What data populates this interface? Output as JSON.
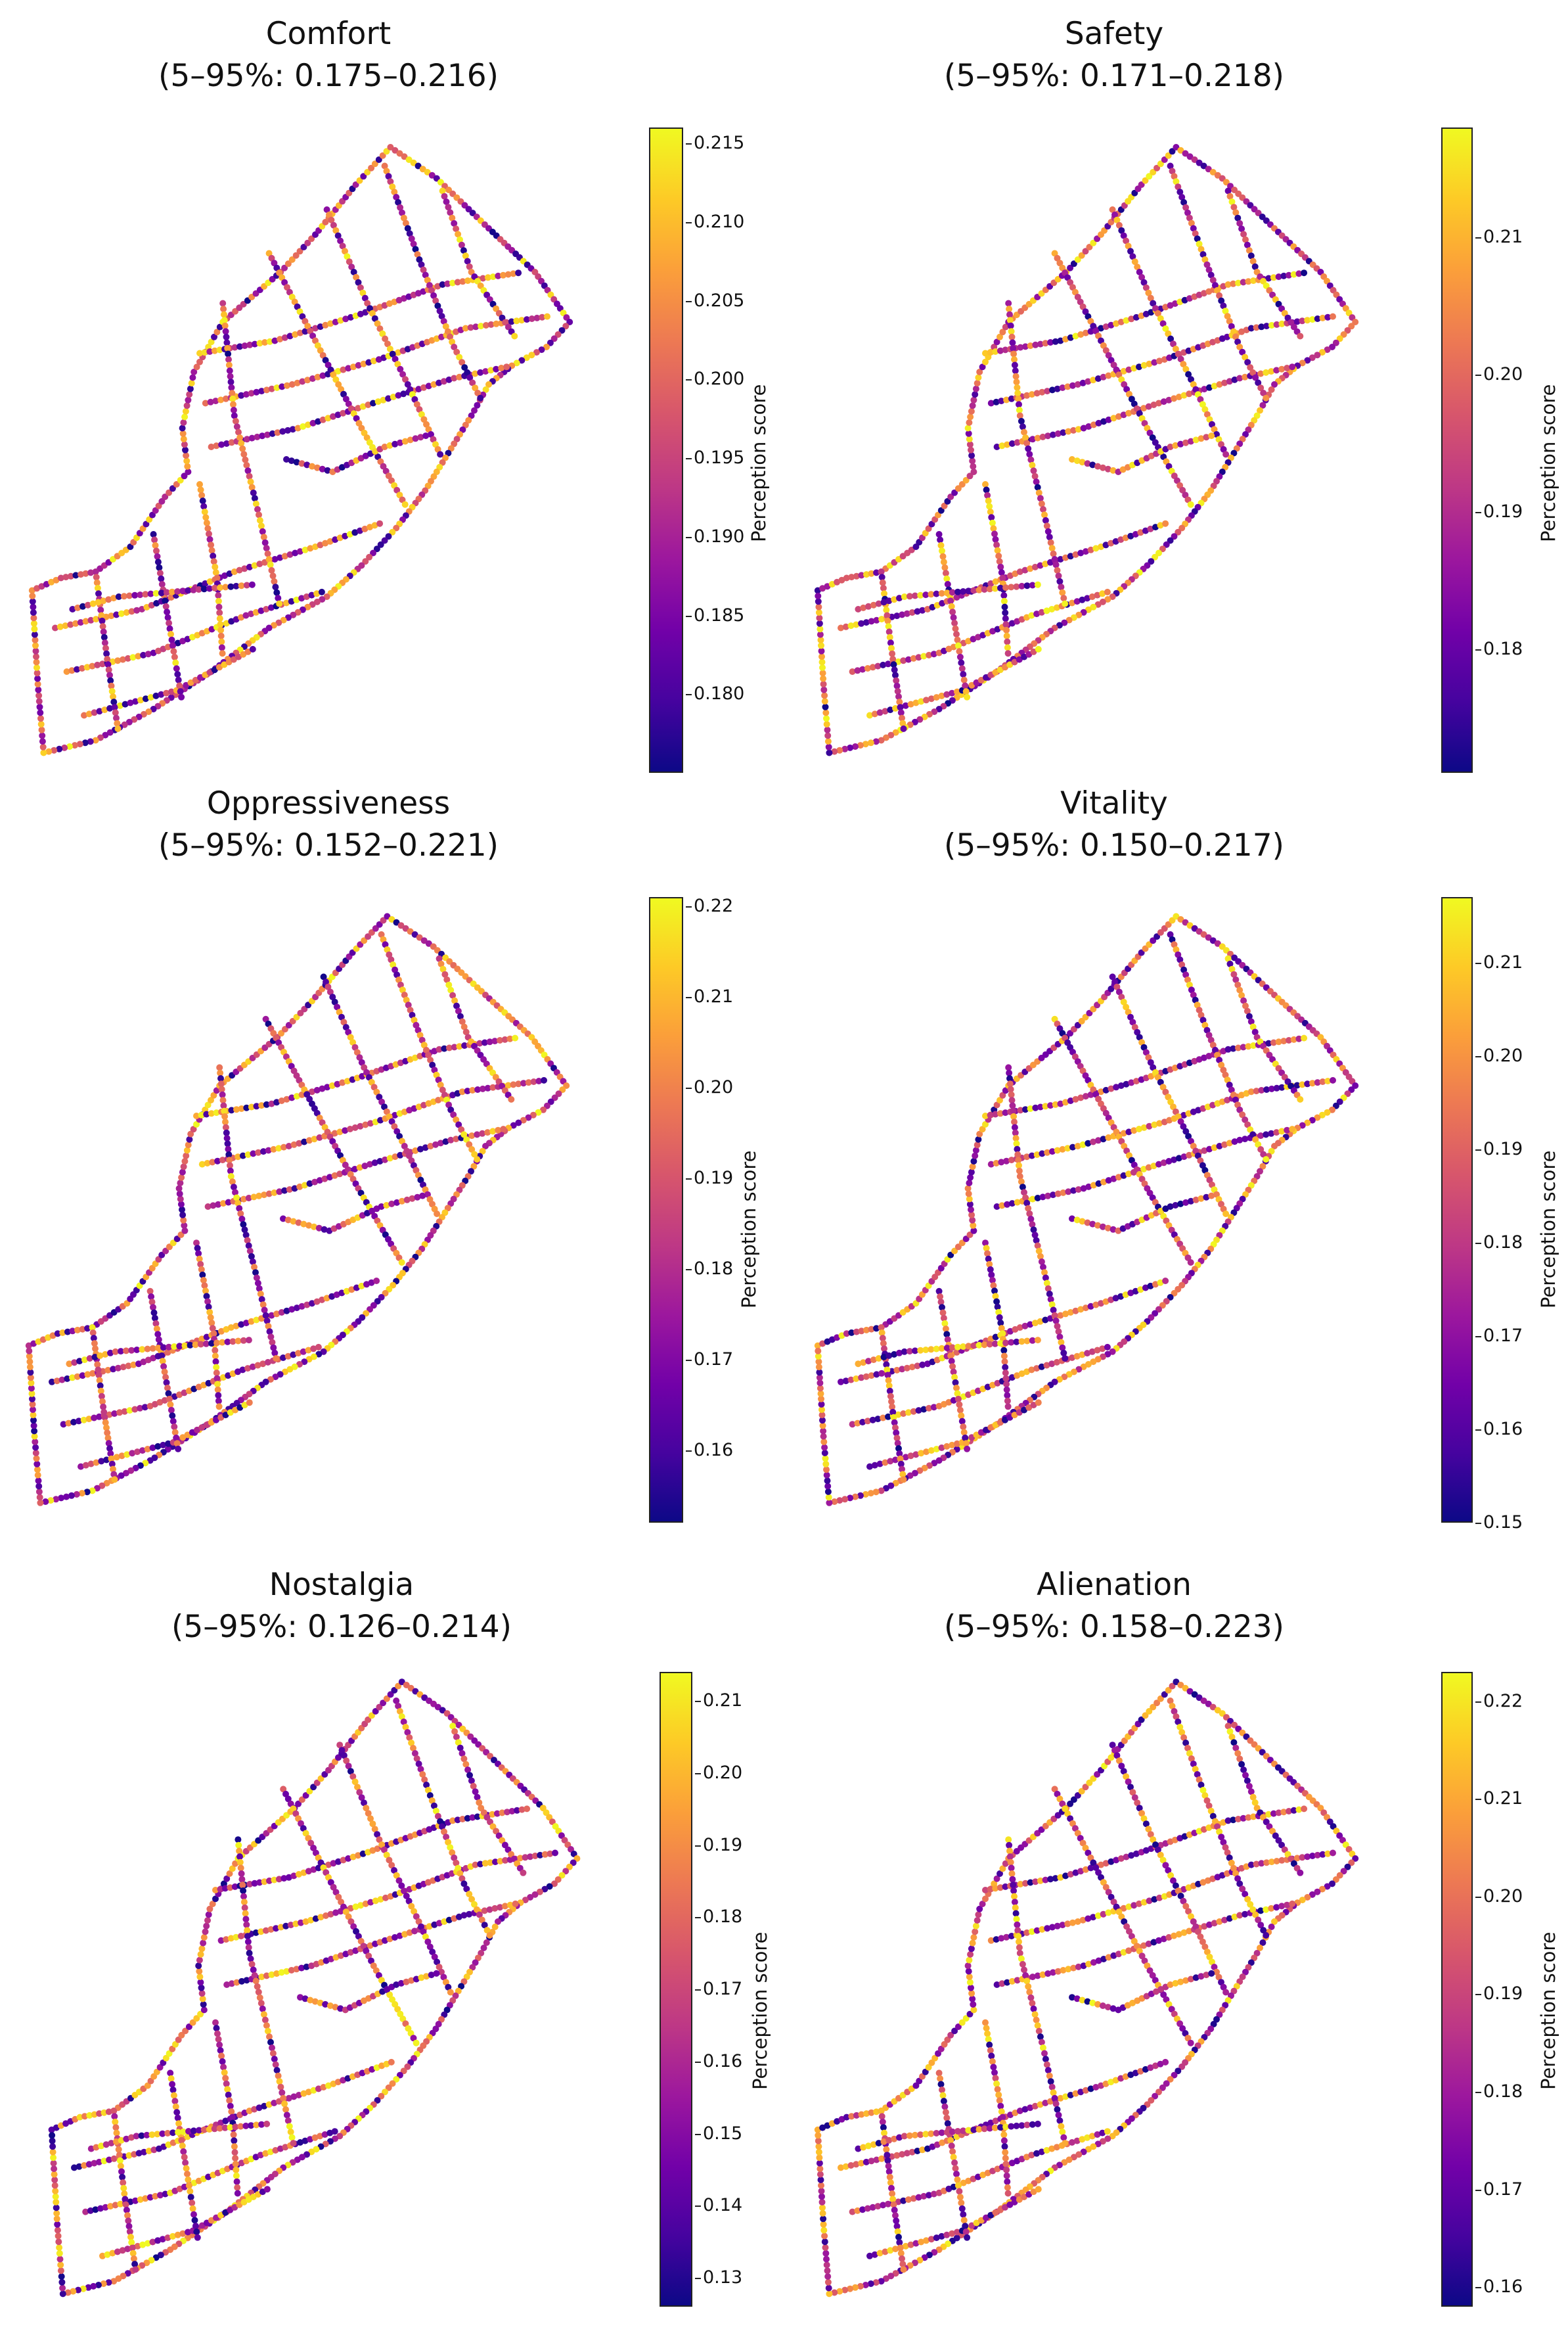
{
  "colormap": [
    "#0d0887",
    "#46039f",
    "#7201a8",
    "#9c179e",
    "#bd3786",
    "#d8576b",
    "#ed7953",
    "#fb9f3a",
    "#fdca26",
    "#f0f921"
  ],
  "chart_data": [
    {
      "type": "scatter",
      "title": "Comfort",
      "subtitle": "(5–95%: 0.175–0.216)",
      "colorbar_label": "Perception score",
      "color_range": [
        0.175,
        0.216
      ],
      "colorbar_ticks": [
        "0.215",
        "0.210",
        "0.205",
        "0.200",
        "0.195",
        "0.190",
        "0.185",
        "0.180"
      ],
      "tick_values": [
        0.215,
        0.21,
        0.205,
        0.2,
        0.195,
        0.19,
        0.185,
        0.18
      ]
    },
    {
      "type": "scatter",
      "title": "Safety",
      "subtitle": "(5–95%: 0.171–0.218)",
      "colorbar_label": "Perception score",
      "color_range": [
        0.171,
        0.218
      ],
      "colorbar_ticks": [
        "0.21",
        "0.20",
        "0.19",
        "0.18"
      ],
      "tick_values": [
        0.21,
        0.2,
        0.19,
        0.18
      ]
    },
    {
      "type": "scatter",
      "title": "Oppressiveness",
      "subtitle": "(5–95%: 0.152–0.221)",
      "colorbar_label": "Perception score",
      "color_range": [
        0.152,
        0.221
      ],
      "colorbar_ticks": [
        "0.22",
        "0.21",
        "0.20",
        "0.19",
        "0.18",
        "0.17",
        "0.16"
      ],
      "tick_values": [
        0.22,
        0.21,
        0.2,
        0.19,
        0.18,
        0.17,
        0.16
      ]
    },
    {
      "type": "scatter",
      "title": "Vitality",
      "subtitle": "(5–95%: 0.150–0.217)",
      "colorbar_label": "Perception score",
      "color_range": [
        0.15,
        0.217
      ],
      "colorbar_ticks": [
        "0.21",
        "0.20",
        "0.19",
        "0.18",
        "0.17",
        "0.16",
        "0.15"
      ],
      "tick_values": [
        0.21,
        0.2,
        0.19,
        0.18,
        0.17,
        0.16,
        0.15
      ]
    },
    {
      "type": "scatter",
      "title": "Nostalgia",
      "subtitle": "(5–95%: 0.126–0.214)",
      "colorbar_label": "Perception score",
      "color_range": [
        0.126,
        0.214
      ],
      "colorbar_ticks": [
        "0.21",
        "0.20",
        "0.19",
        "0.18",
        "0.17",
        "0.16",
        "0.15",
        "0.14",
        "0.13"
      ],
      "tick_values": [
        0.21,
        0.2,
        0.19,
        0.18,
        0.17,
        0.16,
        0.15,
        0.14,
        0.13
      ]
    },
    {
      "type": "scatter",
      "title": "Alienation",
      "subtitle": "(5–95%: 0.158–0.223)",
      "colorbar_label": "Perception score",
      "color_range": [
        0.158,
        0.223
      ],
      "colorbar_ticks": [
        "0.22",
        "0.21",
        "0.20",
        "0.19",
        "0.18",
        "0.17",
        "0.16"
      ],
      "tick_values": [
        0.22,
        0.21,
        0.2,
        0.19,
        0.18,
        0.17,
        0.16
      ]
    }
  ]
}
